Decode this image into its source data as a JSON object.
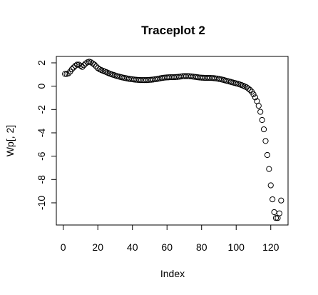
{
  "chart_data": {
    "type": "scatter",
    "title": "Traceplot 2",
    "xlabel": "Index",
    "ylabel": "Wp[, 2]",
    "xlim": [
      -4.0,
      130.0
    ],
    "ylim": [
      -11.9,
      2.55
    ],
    "xticks": [
      0,
      20,
      40,
      60,
      80,
      100,
      120
    ],
    "xtick_labels": [
      "0",
      "20",
      "40",
      "60",
      "80",
      "100",
      "120"
    ],
    "yticks": [
      2,
      0,
      -2,
      -4,
      -6,
      -8,
      -10
    ],
    "ytick_labels": [
      "2",
      "0",
      "-2",
      "-4",
      "-6",
      "-8",
      "-10"
    ],
    "grid": false,
    "marker": "open-circle",
    "series": [
      {
        "x": [
          1,
          2,
          3,
          4,
          5,
          6,
          7,
          8,
          9,
          10,
          11,
          12,
          13,
          14,
          15,
          16,
          17,
          18,
          19,
          20,
          21,
          22,
          23,
          24,
          25,
          26,
          27,
          28,
          29,
          30,
          31,
          32,
          33,
          34,
          35,
          36,
          37,
          38,
          39,
          40,
          41,
          42,
          43,
          44,
          45,
          46,
          47,
          48,
          49,
          50,
          51,
          52,
          53,
          54,
          55,
          56,
          57,
          58,
          59,
          60,
          61,
          62,
          63,
          64,
          65,
          66,
          67,
          68,
          69,
          70,
          71,
          72,
          73,
          74,
          75,
          76,
          77,
          78,
          79,
          80,
          81,
          82,
          83,
          84,
          85,
          86,
          87,
          88,
          89,
          90,
          91,
          92,
          93,
          94,
          95,
          96,
          97,
          98,
          99,
          100,
          101,
          102,
          103,
          104,
          105,
          106,
          107,
          108,
          109,
          110,
          111,
          112,
          113,
          114,
          115,
          116,
          117,
          118,
          119,
          120,
          121,
          122,
          123,
          124,
          125,
          126
        ],
        "y": [
          1.05,
          1.05,
          1.1,
          1.25,
          1.45,
          1.6,
          1.75,
          1.85,
          1.85,
          1.75,
          1.65,
          1.8,
          1.95,
          2.05,
          2.1,
          2.05,
          1.95,
          1.85,
          1.7,
          1.55,
          1.45,
          1.38,
          1.32,
          1.26,
          1.2,
          1.13,
          1.07,
          1.01,
          0.97,
          0.92,
          0.87,
          0.83,
          0.79,
          0.75,
          0.72,
          0.69,
          0.66,
          0.63,
          0.61,
          0.59,
          0.57,
          0.55,
          0.54,
          0.53,
          0.52,
          0.52,
          0.52,
          0.52,
          0.53,
          0.54,
          0.55,
          0.57,
          0.59,
          0.61,
          0.64,
          0.67,
          0.7,
          0.72,
          0.74,
          0.75,
          0.76,
          0.77,
          0.77,
          0.77,
          0.78,
          0.79,
          0.81,
          0.83,
          0.85,
          0.86,
          0.86,
          0.86,
          0.85,
          0.84,
          0.82,
          0.8,
          0.78,
          0.76,
          0.74,
          0.73,
          0.72,
          0.71,
          0.71,
          0.71,
          0.71,
          0.7,
          0.69,
          0.67,
          0.65,
          0.62,
          0.59,
          0.56,
          0.52,
          0.48,
          0.44,
          0.4,
          0.36,
          0.32,
          0.28,
          0.24,
          0.2,
          0.15,
          0.1,
          0.04,
          -0.03,
          -0.1,
          -0.2,
          -0.32,
          -0.48,
          -0.7,
          -0.96,
          -1.28,
          -1.68,
          -2.2,
          -2.9,
          -3.7,
          -4.7,
          -5.9,
          -7.1,
          -8.5,
          -9.7,
          -10.8,
          -11.3,
          -11.3,
          -10.9,
          -9.8
        ]
      }
    ]
  }
}
